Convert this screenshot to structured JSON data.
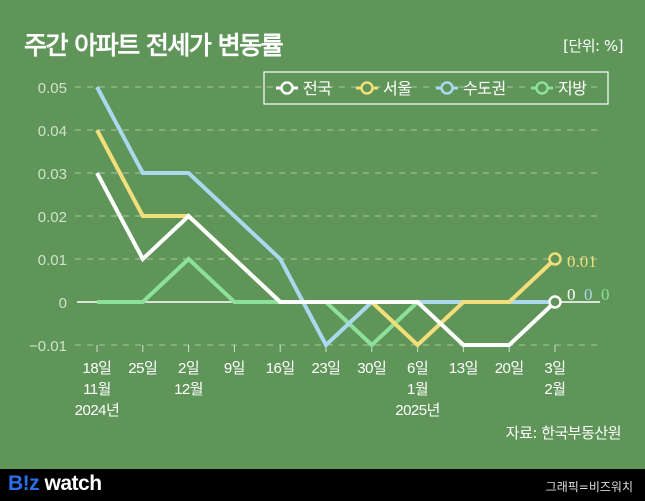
{
  "header": {
    "title": "주간 아파트 전세가 변동률",
    "unit": "[단위: %]"
  },
  "legend": [
    {
      "label": "전국",
      "color": "#ffffff"
    },
    {
      "label": "서울",
      "color": "#f2de7a"
    },
    {
      "label": "수도권",
      "color": "#a9d8ef"
    },
    {
      "label": "지방",
      "color": "#8ce09a"
    }
  ],
  "end_labels": {
    "seoul": "0.01",
    "national": "0",
    "capital": "0",
    "regional": "0"
  },
  "source": "자료: 한국부동산원",
  "footer": {
    "logo_b": "B!z",
    "logo_w": " watch",
    "credit": "그래픽=비즈워치"
  },
  "chart_data": {
    "type": "line",
    "title": "주간 아파트 전세가 변동률",
    "ylabel": "%",
    "xlabel": "",
    "ylim": [
      -0.01,
      0.05
    ],
    "yticks": [
      "0.05",
      "0.04",
      "0.03",
      "0.02",
      "0.01",
      "0",
      "-0.01"
    ],
    "grid": true,
    "legend_position": "top-right",
    "categories": [
      "2024-11-18",
      "2024-11-25",
      "2024-12-02",
      "2024-12-09",
      "2024-12-16",
      "2024-12-23",
      "2024-12-30",
      "2025-01-06",
      "2025-01-13",
      "2025-01-20",
      "2025-02-03"
    ],
    "x_tick_labels": [
      [
        "18일",
        "11월",
        "2024년"
      ],
      [
        "25일"
      ],
      [
        "2일",
        "12월"
      ],
      [
        "9일"
      ],
      [
        "16일"
      ],
      [
        "23일"
      ],
      [
        "30일"
      ],
      [
        "6일",
        "1월",
        "2025년"
      ],
      [
        "13일"
      ],
      [
        "20일"
      ],
      [
        "3일",
        "2월"
      ]
    ],
    "series": [
      {
        "name": "전국",
        "color": "#ffffff",
        "values": [
          0.03,
          0.01,
          0.02,
          0.01,
          0,
          0,
          0,
          0,
          -0.01,
          -0.01,
          0
        ]
      },
      {
        "name": "서울",
        "color": "#f2de7a",
        "values": [
          0.04,
          0.02,
          0.02,
          0.01,
          0,
          0,
          0,
          -0.01,
          0,
          0,
          0.01
        ]
      },
      {
        "name": "수도권",
        "color": "#a9d8ef",
        "values": [
          0.05,
          0.03,
          0.03,
          0.02,
          0.01,
          -0.01,
          0,
          0,
          0,
          0,
          0
        ]
      },
      {
        "name": "지방",
        "color": "#8ce09a",
        "values": [
          0,
          0,
          0.01,
          0,
          0,
          0,
          -0.01,
          0,
          0,
          0,
          0
        ]
      }
    ],
    "annotations": [
      "0.01",
      "0",
      "0",
      "0"
    ]
  }
}
